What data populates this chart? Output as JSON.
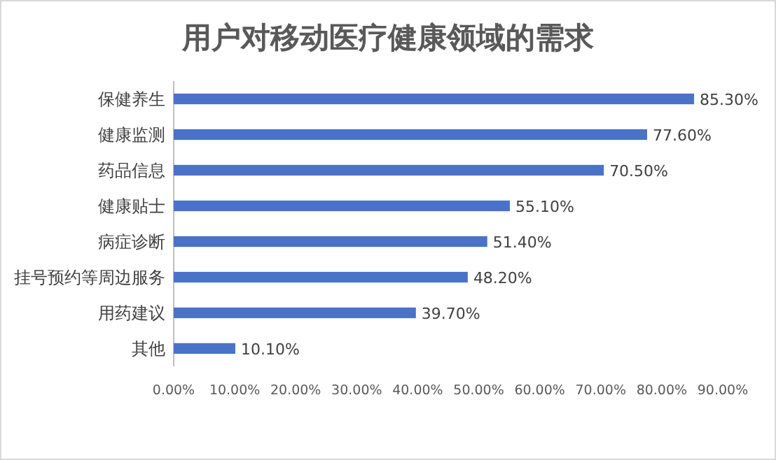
{
  "chart_data": {
    "type": "bar",
    "orientation": "horizontal",
    "title": "用户对移动医疗健康领域的需求",
    "categories": [
      "保健养生",
      "健康监测",
      "药品信息",
      "健康贴士",
      "病症诊断",
      "挂号预约等周边服务",
      "用药建议",
      "其他"
    ],
    "values": [
      85.3,
      77.6,
      70.5,
      55.1,
      51.4,
      48.2,
      39.7,
      10.1
    ],
    "value_labels": [
      "85.30%",
      "77.60%",
      "70.50%",
      "55.10%",
      "51.40%",
      "48.20%",
      "39.70%",
      "10.10%"
    ],
    "color": "#4a72c8",
    "xlim": [
      0,
      90
    ],
    "xticks": [
      {
        "value": 0,
        "label": "0.00%"
      },
      {
        "value": 10,
        "label": "10.00%"
      },
      {
        "value": 20,
        "label": "20.00%"
      },
      {
        "value": 30,
        "label": "30.00%"
      },
      {
        "value": 40,
        "label": "40.00%"
      },
      {
        "value": 50,
        "label": "50.00%"
      },
      {
        "value": 60,
        "label": "60.00%"
      },
      {
        "value": 70,
        "label": "70.00%"
      },
      {
        "value": 80,
        "label": "80.00%"
      },
      {
        "value": 90,
        "label": "90.00%"
      }
    ],
    "grid": false
  }
}
